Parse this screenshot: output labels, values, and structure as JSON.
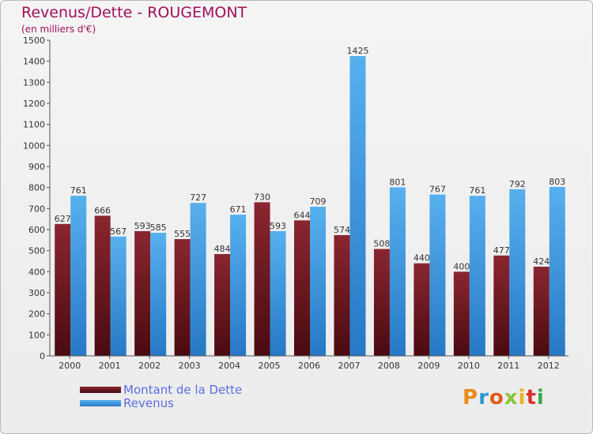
{
  "title": "Revenus/Dette - ROUGEMONT",
  "subtitle": "(en milliers d'€)",
  "colors": {
    "dette": "#7a1b24",
    "revenus": "#3f9be0",
    "title": "#a0105a",
    "legend_text": "#5a6fe0"
  },
  "logo": {
    "text": "Proxiti"
  },
  "chart_data": {
    "type": "bar",
    "title": "Revenus/Dette - ROUGEMONT",
    "subtitle": "(en milliers d'€)",
    "categories": [
      "2000",
      "2001",
      "2002",
      "2003",
      "2004",
      "2005",
      "2006",
      "2007",
      "2008",
      "2009",
      "2010",
      "2011",
      "2012"
    ],
    "series": [
      {
        "name": "Montant de la Dette",
        "values": [
          627,
          666,
          593,
          555,
          484,
          730,
          644,
          574,
          508,
          440,
          400,
          477,
          424
        ]
      },
      {
        "name": "Revenus",
        "values": [
          761,
          567,
          585,
          727,
          671,
          593,
          709,
          1425,
          801,
          767,
          761,
          792,
          803
        ]
      }
    ],
    "ylim": [
      0,
      1500
    ],
    "yticks": [
      0,
      100,
      200,
      300,
      400,
      500,
      600,
      700,
      800,
      900,
      1000,
      1100,
      1200,
      1300,
      1400,
      1500
    ],
    "grid": false,
    "legend": "bottom-left"
  }
}
